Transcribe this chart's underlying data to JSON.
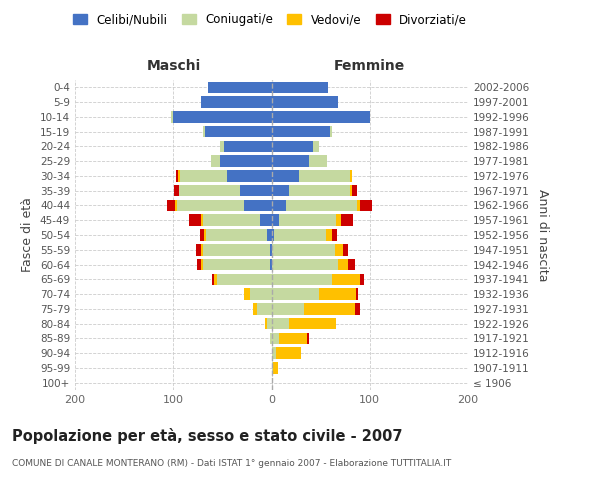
{
  "age_groups": [
    "100+",
    "95-99",
    "90-94",
    "85-89",
    "80-84",
    "75-79",
    "70-74",
    "65-69",
    "60-64",
    "55-59",
    "50-54",
    "45-49",
    "40-44",
    "35-39",
    "30-34",
    "25-29",
    "20-24",
    "15-19",
    "10-14",
    "5-9",
    "0-4"
  ],
  "birth_years": [
    "≤ 1906",
    "1907-1911",
    "1912-1916",
    "1917-1921",
    "1922-1926",
    "1927-1931",
    "1932-1936",
    "1937-1941",
    "1942-1946",
    "1947-1951",
    "1952-1956",
    "1957-1961",
    "1962-1966",
    "1967-1971",
    "1972-1976",
    "1977-1981",
    "1982-1986",
    "1987-1991",
    "1992-1996",
    "1997-2001",
    "2002-2006"
  ],
  "maschi_celibi": [
    0,
    0,
    0,
    0,
    0,
    0,
    0,
    0,
    2,
    2,
    5,
    12,
    28,
    32,
    45,
    52,
    48,
    68,
    100,
    72,
    65
  ],
  "maschi_coniugati": [
    0,
    0,
    0,
    2,
    5,
    15,
    22,
    55,
    68,
    68,
    62,
    58,
    68,
    62,
    48,
    10,
    4,
    2,
    2,
    0,
    0
  ],
  "maschi_vedovi": [
    0,
    0,
    0,
    0,
    2,
    4,
    6,
    4,
    2,
    2,
    2,
    2,
    2,
    0,
    2,
    0,
    0,
    0,
    0,
    0,
    0
  ],
  "maschi_divorziati": [
    0,
    0,
    0,
    0,
    0,
    0,
    0,
    2,
    4,
    5,
    4,
    12,
    8,
    5,
    2,
    0,
    0,
    0,
    0,
    0,
    0
  ],
  "femmine_nubili": [
    0,
    0,
    0,
    0,
    0,
    0,
    0,
    0,
    0,
    0,
    3,
    8,
    15,
    18,
    28,
    38,
    42,
    60,
    100,
    68,
    58
  ],
  "femmine_coniugate": [
    0,
    2,
    5,
    8,
    18,
    33,
    48,
    62,
    68,
    65,
    52,
    58,
    72,
    62,
    52,
    18,
    6,
    2,
    0,
    0,
    0
  ],
  "femmine_vedove": [
    0,
    5,
    25,
    28,
    48,
    52,
    38,
    28,
    10,
    8,
    7,
    5,
    3,
    2,
    2,
    0,
    0,
    0,
    0,
    0,
    0
  ],
  "femmine_divorziate": [
    0,
    0,
    0,
    2,
    0,
    5,
    2,
    4,
    7,
    5,
    5,
    12,
    12,
    5,
    0,
    0,
    0,
    0,
    0,
    0,
    0
  ],
  "colors": {
    "celibi_nubili": "#4472C4",
    "coniugati": "#C5D9A0",
    "vedovi": "#FFC000",
    "divorziati": "#CC0000"
  },
  "title": "Popolazione per età, sesso e stato civile - 2007",
  "subtitle": "COMUNE DI CANALE MONTERANO (RM) - Dati ISTAT 1° gennaio 2007 - Elaborazione TUTTITALIA.IT",
  "ylabel_left": "Fasce di età",
  "ylabel_right": "Anni di nascita",
  "xlabel_maschi": "Maschi",
  "xlabel_femmine": "Femmine",
  "xlim": 200,
  "legend_labels": [
    "Celibi/Nubili",
    "Coniugati/e",
    "Vedovi/e",
    "Divorziati/e"
  ]
}
